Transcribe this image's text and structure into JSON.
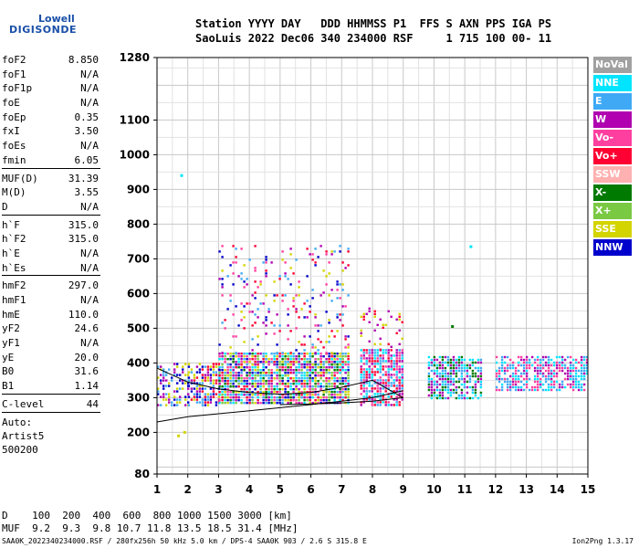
{
  "logo": {
    "line1": "Lowell",
    "line2": "DIGISONDE"
  },
  "header": {
    "line1": "Station YYYY DAY   DDD HHMMSS P1  FFS S AXN PPS IGA PS",
    "line2": "SaoLuis 2022 Dec06 340 234000 RSF     1 715 100 00- 11"
  },
  "params": {
    "group1": [
      {
        "k": "foF2",
        "v": "8.850"
      },
      {
        "k": "foF1",
        "v": "N/A"
      },
      {
        "k": "foF1p",
        "v": "N/A"
      },
      {
        "k": "foE",
        "v": "N/A"
      },
      {
        "k": "foEp",
        "v": "0.35"
      },
      {
        "k": "fxI",
        "v": "3.50"
      },
      {
        "k": "foEs",
        "v": "N/A"
      },
      {
        "k": "fmin",
        "v": "6.05"
      }
    ],
    "group2": [
      {
        "k": "MUF(D)",
        "v": "31.39"
      },
      {
        "k": "M(D)",
        "v": "3.55"
      },
      {
        "k": "D",
        "v": "N/A"
      }
    ],
    "group3": [
      {
        "k": "h`F",
        "v": "315.0"
      },
      {
        "k": "h`F2",
        "v": "315.0"
      },
      {
        "k": "h`E",
        "v": "N/A"
      },
      {
        "k": "h`Es",
        "v": "N/A"
      }
    ],
    "group4": [
      {
        "k": "hmF2",
        "v": "297.0"
      },
      {
        "k": "hmF1",
        "v": "N/A"
      },
      {
        "k": "hmE",
        "v": "110.0"
      },
      {
        "k": "yF2",
        "v": "24.6"
      },
      {
        "k": "yF1",
        "v": "N/A"
      },
      {
        "k": "yE",
        "v": "20.0"
      },
      {
        "k": "B0",
        "v": "31.6"
      },
      {
        "k": "B1",
        "v": "1.14"
      }
    ],
    "clevel": {
      "k": "C-level",
      "v": "44"
    },
    "auto": [
      "Auto:",
      "Artist5",
      "500200"
    ]
  },
  "legend": [
    {
      "label": "NoVal",
      "color": "#a0a0a0"
    },
    {
      "label": "NNE",
      "color": "#00e5ff"
    },
    {
      "label": "E",
      "color": "#3fa9f5"
    },
    {
      "label": "W",
      "color": "#b000b0"
    },
    {
      "label": "Vo-",
      "color": "#ff3fa0"
    },
    {
      "label": "Vo+",
      "color": "#ff0033"
    },
    {
      "label": "SSW",
      "color": "#ffb0b0"
    },
    {
      "label": "X-",
      "color": "#007a00"
    },
    {
      "label": "X+",
      "color": "#7ac943"
    },
    {
      "label": "SSE",
      "color": "#d4d400"
    },
    {
      "label": "NNW",
      "color": "#0000cc"
    }
  ],
  "muf_table": {
    "line1": "D    100  200  400  600  800 1000 1500 3000 [km]",
    "line2": "MUF  9.2  9.3  9.8 10.7 11.8 13.5 18.5 31.4 [MHz]"
  },
  "footer": {
    "left": "SAA0K_2022340234000.RSF / 280fx256h 50 kHz 5.0 km / DPS-4 SAA0K 903 / 2.6 S 315.8 E",
    "right": "Ion2Png 1.3.17"
  },
  "chart_data": {
    "type": "scatter",
    "title": "",
    "xlabel": "",
    "ylabel": "",
    "xlim": [
      1,
      15
    ],
    "ylim": [
      80,
      1280
    ],
    "xticks": [
      "1",
      "2",
      "3",
      "4",
      "5",
      "6",
      "7",
      "8",
      "9",
      "10",
      "11",
      "12",
      "13",
      "14",
      "15"
    ],
    "yticks": [
      {
        "v": 80,
        "label": "80"
      },
      {
        "v": 200,
        "label": "200"
      },
      {
        "v": 300,
        "label": "300"
      },
      {
        "v": 400,
        "label": "400"
      },
      {
        "v": 500,
        "label": "500"
      },
      {
        "v": 600,
        "label": "600"
      },
      {
        "v": 700,
        "label": "700"
      },
      {
        "v": 800,
        "label": "800"
      },
      {
        "v": 900,
        "label": "900"
      },
      {
        "v": 1000,
        "label": "1000"
      },
      {
        "v": 1100,
        "label": "1100"
      },
      {
        "v": 1280,
        "label": "1280"
      }
    ],
    "grid": true,
    "echo_regions": [
      {
        "f": [
          1.0,
          2.0
        ],
        "h": [
          280,
          400
        ],
        "density": 0.45,
        "colors": [
          "#0000cc",
          "#b000b0",
          "#3fa9f5",
          "#d4d400"
        ]
      },
      {
        "f": [
          2.0,
          3.0
        ],
        "h": [
          280,
          400
        ],
        "density": 0.6,
        "colors": [
          "#0000cc",
          "#b000b0",
          "#3fa9f5",
          "#d4d400",
          "#ff0033"
        ]
      },
      {
        "f": [
          3.0,
          7.2
        ],
        "h": [
          280,
          430
        ],
        "density": 0.85,
        "colors": [
          "#3fa9f5",
          "#b000b0",
          "#d4d400",
          "#ff0033",
          "#ff3fa0",
          "#0000cc",
          "#007a00",
          "#7ac943",
          "#00e5ff"
        ]
      },
      {
        "f": [
          3.0,
          7.2
        ],
        "h": [
          430,
          740
        ],
        "density": 0.12,
        "colors": [
          "#b000b0",
          "#d4d400",
          "#3fa9f5",
          "#ff0033",
          "#ff3fa0",
          "#0000cc"
        ]
      },
      {
        "f": [
          7.6,
          9.0
        ],
        "h": [
          280,
          440
        ],
        "density": 0.8,
        "colors": [
          "#ff0033",
          "#ff3fa0",
          "#b000b0",
          "#3fa9f5",
          "#00e5ff"
        ]
      },
      {
        "f": [
          7.6,
          9.0
        ],
        "h": [
          440,
          560
        ],
        "density": 0.12,
        "colors": [
          "#ff0033",
          "#b000b0",
          "#d4d400"
        ]
      },
      {
        "f": [
          9.8,
          11.5
        ],
        "h": [
          300,
          420
        ],
        "density": 0.7,
        "colors": [
          "#3fa9f5",
          "#00e5ff",
          "#007a00",
          "#b000b0"
        ]
      },
      {
        "f": [
          12.0,
          15.0
        ],
        "h": [
          320,
          420
        ],
        "density": 0.65,
        "colors": [
          "#3fa9f5",
          "#00e5ff",
          "#b000b0",
          "#ff3fa0"
        ]
      }
    ],
    "traces": [
      {
        "x": [
          1.0,
          2.0,
          4.0,
          6.0,
          8.0,
          9.0
        ],
        "y": [
          230,
          245,
          262,
          280,
          300,
          320
        ]
      },
      {
        "x": [
          1.0,
          2.0,
          3.0,
          4.0,
          5.0,
          6.0,
          7.0,
          8.0,
          9.0
        ],
        "y": [
          385,
          345,
          325,
          315,
          310,
          315,
          330,
          350,
          300
        ]
      },
      {
        "x": [
          5.0,
          6.0,
          7.0,
          8.0,
          9.0
        ],
        "y": [
          280,
          282,
          285,
          290,
          300
        ]
      }
    ],
    "isolated_points": [
      {
        "x": 1.8,
        "y": 940,
        "color": "#00e5ff"
      },
      {
        "x": 11.2,
        "y": 735,
        "color": "#00e5ff"
      },
      {
        "x": 1.9,
        "y": 200,
        "color": "#d4d400"
      },
      {
        "x": 1.7,
        "y": 190,
        "color": "#d4d400"
      },
      {
        "x": 10.6,
        "y": 505,
        "color": "#007a00"
      }
    ]
  }
}
